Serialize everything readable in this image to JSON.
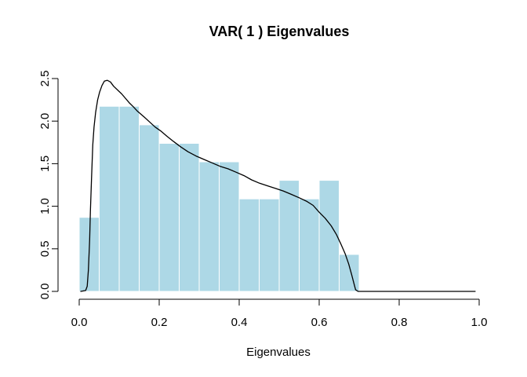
{
  "figure": {
    "title": "VAR( 1 ) Eigenvalues",
    "x_axis_label": "Eigenvalues"
  },
  "chart_data": {
    "type": "bar",
    "subtype": "histogram_with_density_overlay",
    "title": "VAR( 1 ) Eigenvalues",
    "xlabel": "Eigenvalues",
    "ylabel": "",
    "xlim": [
      0,
      1
    ],
    "ylim": [
      0,
      2.5
    ],
    "grid": false,
    "legend": "none",
    "x_tick_values": [
      0,
      0.2,
      0.4,
      0.6,
      0.8,
      1.0
    ],
    "x_tick_labels": [
      "0.0",
      "0.2",
      "0.4",
      "0.6",
      "0.8",
      "1.0"
    ],
    "y_tick_values": [
      0,
      0.5,
      1.0,
      1.5,
      2.0,
      2.5
    ],
    "y_tick_labels": [
      "0.0",
      "0.5",
      "1.0",
      "1.5",
      "2.0",
      "2.5"
    ],
    "histogram": {
      "bin_width": 0.05,
      "bin_edges": [
        0.0,
        0.05,
        0.1,
        0.15,
        0.2,
        0.25,
        0.3,
        0.35,
        0.4,
        0.45,
        0.5,
        0.55,
        0.6,
        0.65,
        0.7
      ],
      "densities": [
        0.8696,
        2.1739,
        2.1739,
        1.9565,
        1.7391,
        1.7391,
        1.5217,
        1.5217,
        1.087,
        1.087,
        1.3043,
        1.087,
        1.3043,
        0.4348
      ],
      "bar_color": "#ADD8E6",
      "bar_border_color": "#FFFFFF"
    },
    "density_curve": {
      "color": "#000000",
      "points": [
        [
          0.004,
          0.0
        ],
        [
          0.016,
          0.01
        ],
        [
          0.02,
          0.06
        ],
        [
          0.023,
          0.25
        ],
        [
          0.026,
          0.6
        ],
        [
          0.028,
          0.95
        ],
        [
          0.031,
          1.35
        ],
        [
          0.034,
          1.72
        ],
        [
          0.037,
          1.93
        ],
        [
          0.041,
          2.1
        ],
        [
          0.046,
          2.25
        ],
        [
          0.051,
          2.34
        ],
        [
          0.057,
          2.42
        ],
        [
          0.063,
          2.47
        ],
        [
          0.07,
          2.48
        ],
        [
          0.078,
          2.46
        ],
        [
          0.086,
          2.41
        ],
        [
          0.106,
          2.32
        ],
        [
          0.126,
          2.21
        ],
        [
          0.135,
          2.17
        ],
        [
          0.145,
          2.12
        ],
        [
          0.162,
          2.05
        ],
        [
          0.176,
          1.99
        ],
        [
          0.19,
          1.93
        ],
        [
          0.205,
          1.88
        ],
        [
          0.22,
          1.82
        ],
        [
          0.236,
          1.76
        ],
        [
          0.253,
          1.7
        ],
        [
          0.272,
          1.64
        ],
        [
          0.292,
          1.59
        ],
        [
          0.312,
          1.55
        ],
        [
          0.332,
          1.51
        ],
        [
          0.352,
          1.47
        ],
        [
          0.372,
          1.44
        ],
        [
          0.392,
          1.4
        ],
        [
          0.412,
          1.36
        ],
        [
          0.431,
          1.31
        ],
        [
          0.451,
          1.27
        ],
        [
          0.471,
          1.24
        ],
        [
          0.49,
          1.21
        ],
        [
          0.51,
          1.18
        ],
        [
          0.53,
          1.14
        ],
        [
          0.55,
          1.1
        ],
        [
          0.568,
          1.06
        ],
        [
          0.585,
          1.01
        ],
        [
          0.6,
          0.93
        ],
        [
          0.615,
          0.86
        ],
        [
          0.63,
          0.77
        ],
        [
          0.643,
          0.67
        ],
        [
          0.654,
          0.56
        ],
        [
          0.665,
          0.44
        ],
        [
          0.674,
          0.32
        ],
        [
          0.681,
          0.2
        ],
        [
          0.687,
          0.09
        ],
        [
          0.691,
          0.02
        ],
        [
          0.697,
          0.0
        ],
        [
          0.99,
          0.0
        ]
      ]
    },
    "colors": {
      "axis": "#000000",
      "text": "#000000",
      "background": "#FFFFFF"
    }
  }
}
